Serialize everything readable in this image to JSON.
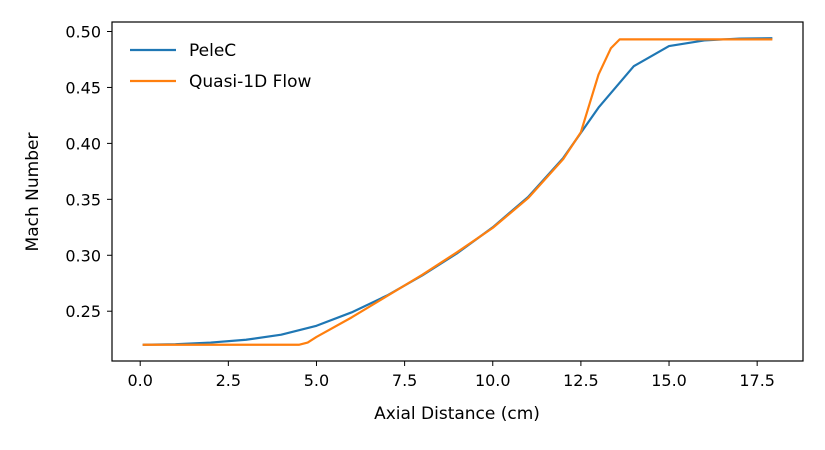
{
  "chart_data": {
    "type": "line",
    "title": "",
    "xlabel": "Axial Distance (cm)",
    "ylabel": "Mach Number",
    "xlim": [
      -0.8,
      18.8
    ],
    "ylim": [
      0.2055,
      0.5085
    ],
    "xticks": [
      0.0,
      2.5,
      5.0,
      7.5,
      10.0,
      12.5,
      15.0,
      17.5
    ],
    "xtick_labels": [
      "0.0",
      "2.5",
      "5.0",
      "7.5",
      "10.0",
      "12.5",
      "15.0",
      "17.5"
    ],
    "yticks": [
      0.25,
      0.3,
      0.35,
      0.4,
      0.45,
      0.5
    ],
    "ytick_labels": [
      "0.25",
      "0.30",
      "0.35",
      "0.40",
      "0.45",
      "0.50"
    ],
    "grid": false,
    "legend_position": "top-left",
    "series": [
      {
        "name": "PeleC",
        "color": "#1f77b4",
        "x": [
          0.1,
          1.0,
          2.0,
          3.0,
          4.0,
          5.0,
          6.0,
          7.0,
          8.0,
          9.0,
          10.0,
          11.0,
          12.0,
          13.0,
          14.0,
          15.0,
          16.0,
          17.0,
          17.9
        ],
        "y": [
          0.22,
          0.2205,
          0.222,
          0.2245,
          0.229,
          0.237,
          0.249,
          0.264,
          0.282,
          0.302,
          0.325,
          0.352,
          0.387,
          0.432,
          0.469,
          0.487,
          0.492,
          0.4937,
          0.494
        ]
      },
      {
        "name": "Quasi-1D Flow",
        "color": "#ff7f0e",
        "x": [
          0.1,
          1.0,
          2.0,
          3.0,
          4.0,
          4.5,
          4.75,
          5.0,
          6.0,
          7.0,
          8.0,
          9.0,
          10.0,
          11.0,
          12.0,
          12.5,
          13.0,
          13.35,
          13.6,
          14.0,
          15.0,
          16.0,
          17.0,
          17.9
        ],
        "y": [
          0.22,
          0.22,
          0.22,
          0.22,
          0.22,
          0.22,
          0.222,
          0.227,
          0.2445,
          0.2635,
          0.2825,
          0.303,
          0.3245,
          0.351,
          0.386,
          0.41,
          0.4615,
          0.485,
          0.493,
          0.493,
          0.493,
          0.493,
          0.493,
          0.493
        ]
      }
    ]
  }
}
